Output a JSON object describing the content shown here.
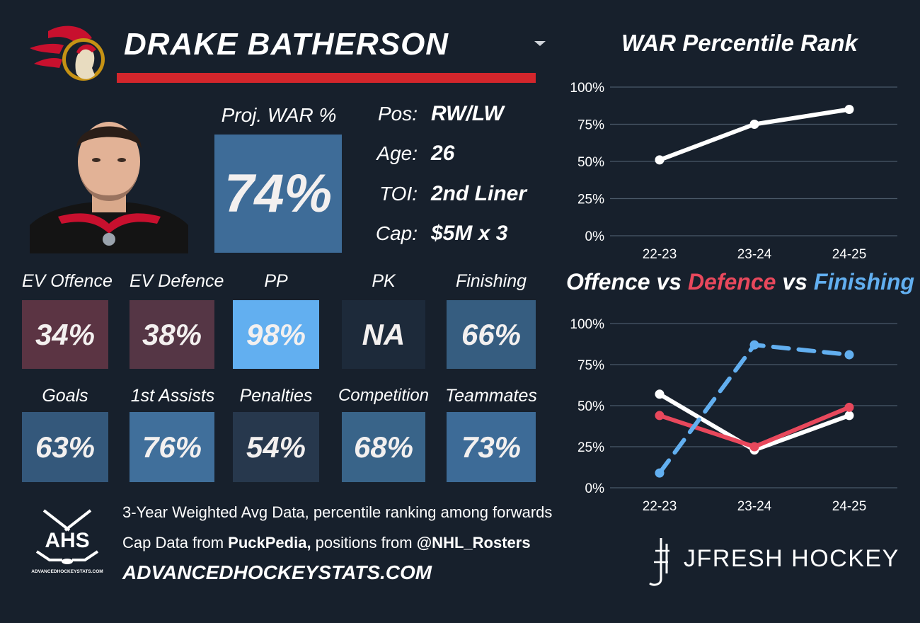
{
  "header": {
    "player_name": "DRAKE BATHERSON"
  },
  "proj_war": {
    "label": "Proj. WAR %",
    "value": "74%",
    "color": "#3e6c98"
  },
  "info": [
    {
      "label": "Pos:",
      "value": "RW/LW"
    },
    {
      "label": "Age:",
      "value": "26"
    },
    {
      "label": "TOI:",
      "value": "2nd Liner"
    },
    {
      "label": "Cap:",
      "value": "$5M x 3"
    }
  ],
  "tiles_row1": [
    {
      "label": "EV Offence",
      "value": "34%",
      "color": "#5b3443"
    },
    {
      "label": "EV Defence",
      "value": "38%",
      "color": "#553645"
    },
    {
      "label": "PP",
      "value": "98%",
      "color": "#62aff0"
    },
    {
      "label": "PK",
      "value": "NA",
      "color": "#1d2a3a"
    },
    {
      "label": "Finishing",
      "value": "66%",
      "color": "#365d80"
    }
  ],
  "tiles_row2": [
    {
      "label": "Goals",
      "value": "63%",
      "color": "#34587b"
    },
    {
      "label": "1st Assists",
      "value": "76%",
      "color": "#406f9b"
    },
    {
      "label": "Penalties",
      "value": "54%",
      "color": "#27384d"
    },
    {
      "label": "Competition",
      "value": "68%",
      "color": "#396489"
    },
    {
      "label": "Teammates",
      "value": "73%",
      "color": "#3d6b97"
    }
  ],
  "footer": {
    "line1": "3-Year Weighted Avg Data, percentile ranking among forwards",
    "line2_a": "Cap Data from ",
    "line2_b": "PuckPedia,",
    "line2_c": " positions from ",
    "line2_d": "@NHL_Rosters",
    "line3": "ADVANCEDHOCKEYSTATS.COM",
    "ahs_logo_text": "AHS",
    "ahs_logo_subtext": "ADVANCEDHOCKEYSTATS.COM"
  },
  "branding": {
    "jfresh": "JFRESH HOCKEY"
  },
  "chart_data": [
    {
      "type": "line",
      "title": "WAR Percentile Rank",
      "categories": [
        "22-23",
        "23-24",
        "24-25"
      ],
      "ylim": [
        0,
        100
      ],
      "yticks": [
        "0%",
        "25%",
        "50%",
        "75%",
        "100%"
      ],
      "grid": true,
      "series": [
        {
          "values": [
            51,
            75,
            85
          ],
          "color": "#ffffff",
          "dash": false
        }
      ]
    },
    {
      "type": "line",
      "title_parts": [
        {
          "text": "Offence",
          "color": "#ffffff"
        },
        {
          "text": " vs ",
          "color": "#ffffff"
        },
        {
          "text": "Defence",
          "color": "#e8485c"
        },
        {
          "text": " vs ",
          "color": "#ffffff"
        },
        {
          "text": "Finishing",
          "color": "#62aff0"
        }
      ],
      "categories": [
        "22-23",
        "23-24",
        "24-25"
      ],
      "ylim": [
        0,
        100
      ],
      "yticks": [
        "0%",
        "25%",
        "50%",
        "75%",
        "100%"
      ],
      "grid": true,
      "series": [
        {
          "name": "Offence",
          "values": [
            57,
            23,
            44
          ],
          "color": "#ffffff",
          "dash": false
        },
        {
          "name": "Defence",
          "values": [
            44,
            25,
            49
          ],
          "color": "#e8485c",
          "dash": false
        },
        {
          "name": "Finishing",
          "values": [
            9,
            87,
            81
          ],
          "color": "#62aff0",
          "dash": true
        }
      ]
    }
  ]
}
